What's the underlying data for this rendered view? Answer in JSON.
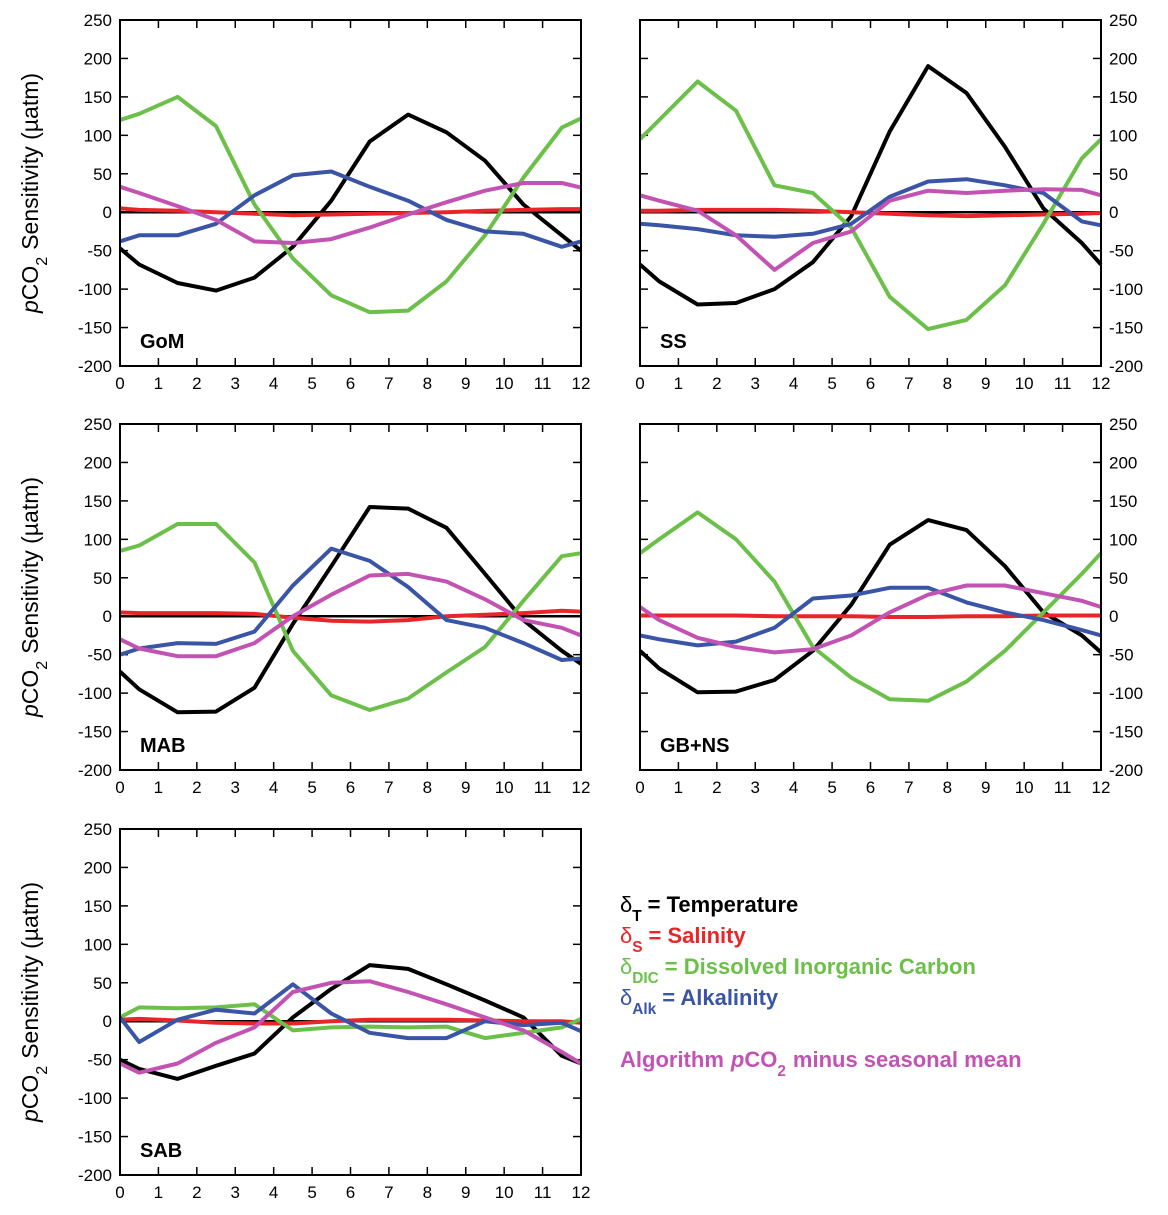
{
  "chart_data": [
    {
      "type": "line",
      "label": "GoM",
      "ytick_side": "left",
      "y_label": {
        "italic": "p",
        "main": "CO",
        "subscript": "2",
        "suffix": "Sensitivity (µatm)"
      },
      "x": [
        0,
        0.5,
        1.5,
        2.5,
        3.5,
        4.5,
        5.5,
        6.5,
        7.5,
        8.5,
        9.5,
        10.5,
        11.5,
        12
      ],
      "xlim": [
        0,
        12
      ],
      "xticks": [
        0,
        1,
        2,
        3,
        4,
        5,
        6,
        7,
        8,
        9,
        10,
        11,
        12
      ],
      "ylim": [
        -200,
        250
      ],
      "yticks": [
        -200,
        -150,
        -100,
        -50,
        0,
        50,
        100,
        150,
        200,
        250
      ],
      "series": [
        {
          "color": "#000000",
          "values": [
            -47,
            -68,
            -92,
            -102,
            -85,
            -45,
            15,
            92,
            127,
            104,
            67,
            10,
            -30,
            -50
          ]
        },
        {
          "color": "#e8262a",
          "values": [
            5,
            3,
            2,
            0,
            -2,
            -4,
            -3,
            -2,
            -1,
            0,
            2,
            3,
            4,
            4
          ]
        },
        {
          "color": "#6cc04a",
          "values": [
            120,
            128,
            150,
            112,
            10,
            -60,
            -108,
            -130,
            -128,
            -90,
            -30,
            45,
            110,
            122
          ]
        },
        {
          "color": "#3a55a6",
          "values": [
            -38,
            -30,
            -30,
            -15,
            22,
            48,
            53,
            33,
            15,
            -10,
            -25,
            -28,
            -45,
            -38
          ]
        },
        {
          "color": "#c353b3",
          "values": [
            33,
            25,
            8,
            -10,
            -38,
            -40,
            -35,
            -20,
            -3,
            13,
            28,
            38,
            38,
            32
          ]
        }
      ]
    },
    {
      "type": "line",
      "label": "SS",
      "ytick_side": "right",
      "x": [
        0,
        0.5,
        1.5,
        2.5,
        3.5,
        4.5,
        5.5,
        6.5,
        7.5,
        8.5,
        9.5,
        10.5,
        11.5,
        12
      ],
      "xlim": [
        0,
        12
      ],
      "xticks": [
        0,
        1,
        2,
        3,
        4,
        5,
        6,
        7,
        8,
        9,
        10,
        11,
        12
      ],
      "ylim": [
        -200,
        250
      ],
      "yticks": [
        -200,
        -150,
        -100,
        -50,
        0,
        50,
        100,
        150,
        200,
        250
      ],
      "series": [
        {
          "color": "#000000",
          "values": [
            -68,
            -90,
            -120,
            -118,
            -100,
            -65,
            -5,
            105,
            190,
            155,
            85,
            5,
            -40,
            -68
          ]
        },
        {
          "color": "#e8262a",
          "values": [
            2,
            2,
            3,
            3,
            3,
            2,
            0,
            -2,
            -4,
            -5,
            -4,
            -3,
            -2,
            -1
          ]
        },
        {
          "color": "#6cc04a",
          "values": [
            95,
            120,
            170,
            132,
            35,
            25,
            -20,
            -110,
            -152,
            -140,
            -95,
            -15,
            70,
            95
          ]
        },
        {
          "color": "#3a55a6",
          "values": [
            -15,
            -17,
            -22,
            -30,
            -32,
            -28,
            -15,
            20,
            40,
            43,
            35,
            25,
            -12,
            -17
          ]
        },
        {
          "color": "#c353b3",
          "values": [
            22,
            15,
            2,
            -30,
            -75,
            -40,
            -25,
            15,
            28,
            25,
            28,
            30,
            29,
            22
          ]
        }
      ]
    },
    {
      "type": "line",
      "label": "MAB",
      "ytick_side": "left",
      "y_label": {
        "italic": "p",
        "main": "CO",
        "subscript": "2",
        "suffix": "Sensitivity (µatm)"
      },
      "x": [
        0,
        0.5,
        1.5,
        2.5,
        3.5,
        4.5,
        5.5,
        6.5,
        7.5,
        8.5,
        9.5,
        10.5,
        11.5,
        12
      ],
      "xlim": [
        0,
        12
      ],
      "xticks": [
        0,
        1,
        2,
        3,
        4,
        5,
        6,
        7,
        8,
        9,
        10,
        11,
        12
      ],
      "ylim": [
        -200,
        250
      ],
      "yticks": [
        -200,
        -150,
        -100,
        -50,
        0,
        50,
        100,
        150,
        200,
        250
      ],
      "series": [
        {
          "color": "#000000",
          "values": [
            -72,
            -95,
            -125,
            -124,
            -93,
            -10,
            65,
            142,
            140,
            115,
            55,
            -5,
            -45,
            -62
          ]
        },
        {
          "color": "#e8262a",
          "values": [
            5,
            4,
            4,
            4,
            3,
            -2,
            -6,
            -7,
            -5,
            0,
            2,
            4,
            7,
            6
          ]
        },
        {
          "color": "#6cc04a",
          "values": [
            85,
            92,
            120,
            120,
            70,
            -45,
            -103,
            -122,
            -107,
            -73,
            -40,
            20,
            78,
            82
          ]
        },
        {
          "color": "#3a55a6",
          "values": [
            -50,
            -42,
            -35,
            -36,
            -20,
            40,
            88,
            72,
            38,
            -5,
            -15,
            -35,
            -57,
            -55
          ]
        },
        {
          "color": "#c353b3",
          "values": [
            -30,
            -42,
            -52,
            -52,
            -35,
            0,
            28,
            53,
            55,
            45,
            22,
            -5,
            -15,
            -25
          ]
        }
      ]
    },
    {
      "type": "line",
      "label": "GB+NS",
      "ytick_side": "right",
      "x": [
        0,
        0.5,
        1.5,
        2.5,
        3.5,
        4.5,
        5.5,
        6.5,
        7.5,
        8.5,
        9.5,
        10.5,
        11.5,
        12
      ],
      "xlim": [
        0,
        12
      ],
      "xticks": [
        0,
        1,
        2,
        3,
        4,
        5,
        6,
        7,
        8,
        9,
        10,
        11,
        12
      ],
      "ylim": [
        -200,
        250
      ],
      "yticks": [
        -200,
        -150,
        -100,
        -50,
        0,
        50,
        100,
        150,
        200,
        250
      ],
      "series": [
        {
          "color": "#000000",
          "values": [
            -45,
            -68,
            -99,
            -98,
            -83,
            -45,
            15,
            93,
            125,
            112,
            65,
            5,
            -25,
            -47
          ]
        },
        {
          "color": "#e8262a",
          "values": [
            1,
            1,
            1,
            1,
            0,
            0,
            0,
            -1,
            -1,
            0,
            0,
            1,
            1,
            1
          ]
        },
        {
          "color": "#6cc04a",
          "values": [
            82,
            100,
            135,
            100,
            45,
            -40,
            -80,
            -108,
            -110,
            -85,
            -45,
            5,
            55,
            82
          ]
        },
        {
          "color": "#3a55a6",
          "values": [
            -25,
            -30,
            -38,
            -33,
            -15,
            23,
            27,
            37,
            37,
            18,
            5,
            -5,
            -18,
            -25
          ]
        },
        {
          "color": "#c353b3",
          "values": [
            12,
            -5,
            -28,
            -40,
            -47,
            -43,
            -25,
            5,
            28,
            40,
            40,
            30,
            20,
            12
          ]
        }
      ]
    },
    {
      "type": "line",
      "label": "SAB",
      "ytick_side": "left",
      "y_label": {
        "italic": "p",
        "main": "CO",
        "subscript": "2",
        "suffix": "Sensitivity (µatm)"
      },
      "x": [
        0,
        0.5,
        1.5,
        2.5,
        3.5,
        4.5,
        5.5,
        6.5,
        7.5,
        8.5,
        9.5,
        10.5,
        11.5,
        12
      ],
      "xlim": [
        0,
        12
      ],
      "xticks": [
        0,
        1,
        2,
        3,
        4,
        5,
        6,
        7,
        8,
        9,
        10,
        11,
        12
      ],
      "ylim": [
        -200,
        250
      ],
      "yticks": [
        -200,
        -150,
        -100,
        -50,
        0,
        50,
        100,
        150,
        200,
        250
      ],
      "series": [
        {
          "color": "#000000",
          "values": [
            -50,
            -62,
            -75,
            -58,
            -42,
            5,
            42,
            73,
            68,
            48,
            27,
            5,
            -45,
            -55
          ]
        },
        {
          "color": "#e8262a",
          "values": [
            2,
            3,
            1,
            -2,
            -3,
            -3,
            0,
            2,
            2,
            2,
            1,
            0,
            0,
            -2
          ]
        },
        {
          "color": "#6cc04a",
          "values": [
            5,
            18,
            17,
            18,
            22,
            -12,
            -8,
            -7,
            -8,
            -7,
            -22,
            -15,
            -8,
            3
          ]
        },
        {
          "color": "#3a55a6",
          "values": [
            5,
            -27,
            2,
            15,
            10,
            48,
            10,
            -15,
            -22,
            -22,
            0,
            -5,
            -2,
            -13
          ]
        },
        {
          "color": "#c353b3",
          "values": [
            -55,
            -67,
            -55,
            -28,
            -8,
            38,
            50,
            52,
            38,
            22,
            5,
            -12,
            -40,
            -55
          ]
        }
      ]
    }
  ],
  "legend": [
    {
      "symbol": "δ",
      "subscript": "T",
      "text": "= Temperature"
    },
    {
      "symbol": "δ",
      "subscript": "S",
      "text": "= Salinity"
    },
    {
      "symbol": "δ",
      "subscript": "DIC",
      "text": "= Dissolved Inorganic Carbon"
    },
    {
      "symbol": "δ",
      "subscript": "Alk",
      "text": "= Alkalinity"
    },
    {
      "prefix": "Algorithm",
      "italic": "p",
      "main": "CO",
      "subscript": "2",
      "suffix": "minus seasonal mean"
    }
  ]
}
